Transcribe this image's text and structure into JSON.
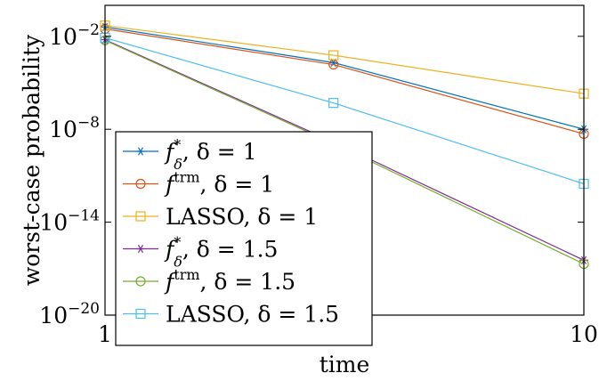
{
  "chart_data": {
    "type": "line",
    "xscale": "log",
    "yscale": "log",
    "title": "",
    "xlabel": "time",
    "ylabel": "worst-case probability",
    "xlim": [
      1,
      10
    ],
    "ylim": [
      1e-20,
      1
    ],
    "grid": false,
    "legend_position": "bottom-left",
    "x_ticks": [
      {
        "value": 1,
        "label": "1"
      },
      {
        "value": 10,
        "label": "10"
      }
    ],
    "y_ticks": [
      {
        "value": 0.01,
        "base": "10",
        "exp": "−2"
      },
      {
        "value": 1e-08,
        "base": "10",
        "exp": "−8"
      },
      {
        "value": 1e-14,
        "base": "10",
        "exp": "−14"
      },
      {
        "value": 1e-20,
        "base": "10",
        "exp": "−20"
      }
    ],
    "x": [
      1,
      3,
      10
    ],
    "series": [
      {
        "name": "f*_δ, δ = 1",
        "legend": {
          "fn": "f",
          "sup": "*",
          "sub": "δ",
          "rest": ", δ = 1"
        },
        "color": "#0072BD",
        "marker": "asterisk",
        "values": [
          0.04,
          0.0002,
          1e-08
        ]
      },
      {
        "name": "f^trm, δ = 1",
        "legend": {
          "fn": "f",
          "sup": "trm",
          "sub": "",
          "rest": ", δ = 1"
        },
        "color": "#D95319",
        "marker": "circle",
        "values": [
          0.03,
          0.00015,
          5e-09
        ]
      },
      {
        "name": "LASSO, δ = 1",
        "legend": {
          "fn": "LASSO",
          "sup": "",
          "sub": "",
          "rest": ", δ = 1"
        },
        "color": "#EDB120",
        "marker": "square",
        "values": [
          0.05,
          0.0006,
          2e-06
        ]
      },
      {
        "name": "f*_δ, δ = 1.5",
        "legend": {
          "fn": "f",
          "sup": "*",
          "sub": "δ",
          "rest": ", δ = 1.5"
        },
        "color": "#7E2F8E",
        "marker": "asterisk",
        "values": [
          0.006,
          1.5e-09,
          3.5e-17
        ]
      },
      {
        "name": "f^trm, δ = 1.5",
        "legend": {
          "fn": "f",
          "sup": "trm",
          "sub": "",
          "rest": ", δ = 1.5"
        },
        "color": "#77AC30",
        "marker": "circle",
        "values": [
          0.0055,
          1.2e-09,
          2e-17
        ]
      },
      {
        "name": "LASSO, δ = 1.5",
        "legend": {
          "fn": "LASSO",
          "sup": "",
          "sub": "",
          "rest": ", δ = 1.5"
        },
        "color": "#4DBEEE",
        "marker": "square",
        "values": [
          0.008,
          5e-07,
          3e-12
        ]
      }
    ]
  }
}
